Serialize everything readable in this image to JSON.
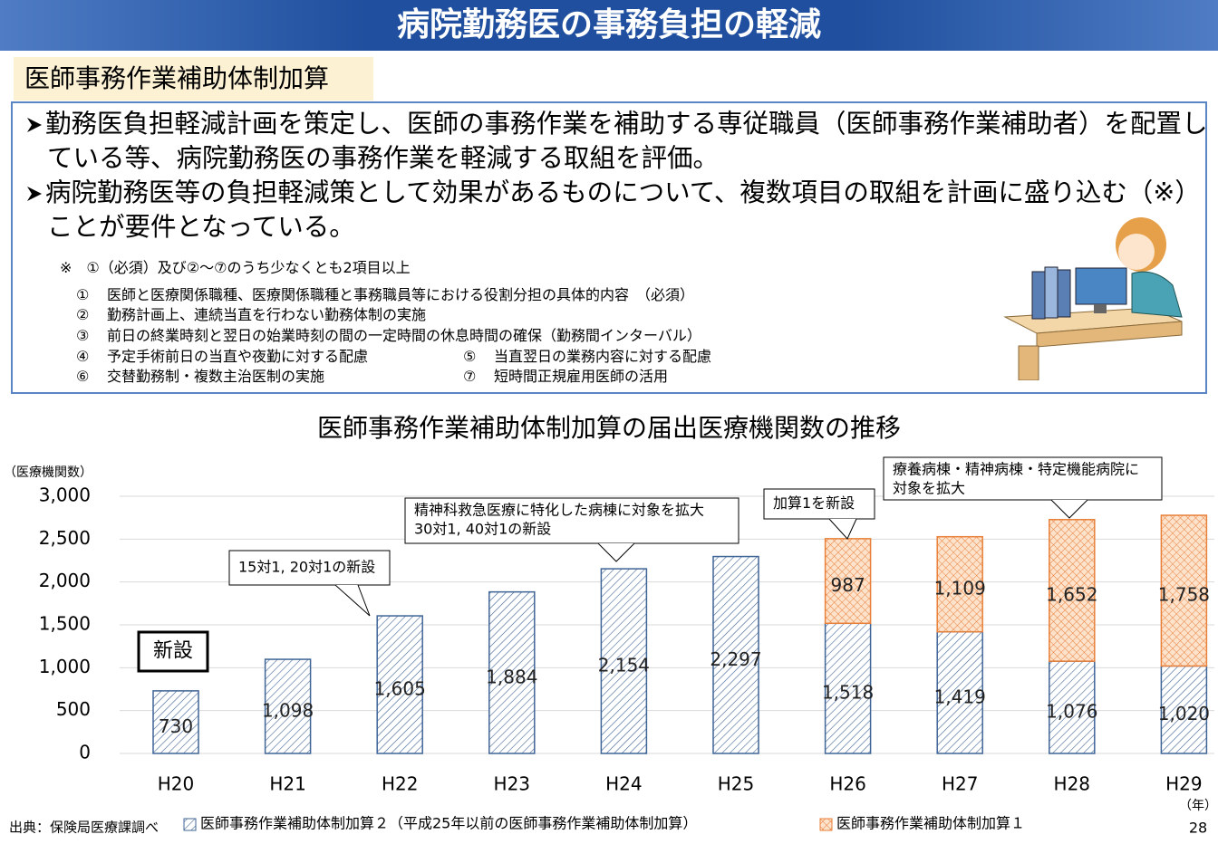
{
  "header": {
    "title": "病院勤務医の事務負担の軽減"
  },
  "section_label": "医師事務作業補助体制加算",
  "bullets": [
    "勤務医負担軽減計画を策定し、医師の事務作業を補助する専従職員（医師事務作業補助者）を配置している等、病院勤務医の事務作業を軽減する取組を評価。",
    "病院勤務医等の負担軽減策として効果があるものについて、複数項目の取組を計画に盛り込む（※）ことが要件となっている。"
  ],
  "note": {
    "heading": "※　①（必須）及び②～⑦のうち少なくとも2項目以上",
    "items": [
      {
        "number": "①",
        "text": "医師と医療関係職種、医療関係職種と事務職員等における役割分担の具体的内容　（必須）"
      },
      {
        "number": "②",
        "text": "勤務計画上、連続当直を行わない勤務体制の実施"
      },
      {
        "number": "③",
        "text": "前日の終業時刻と翌日の始業時刻の間の一定時間の休息時間の確保（勤務間インターバル）"
      },
      {
        "number": "④",
        "text": "予定手術前日の当直や夜勤に対する配慮"
      },
      {
        "number": "⑤",
        "text": "当直翌日の業務内容に対する配慮"
      },
      {
        "number": "⑥",
        "text": "交替勤務制・複数主治医制の実施"
      },
      {
        "number": "⑦",
        "text": "短時間正規雇用医師の活用"
      }
    ]
  },
  "chart_data": {
    "type": "stacked_bar",
    "title": "医師事務作業補助体制加算の届出医療機関数の推移",
    "y_axis_label": "（医療機関数）",
    "x_axis_label": "（年）",
    "categories": [
      "H20",
      "H21",
      "H22",
      "H23",
      "H24",
      "H25",
      "H26",
      "H27",
      "H28",
      "H29"
    ],
    "series": [
      {
        "name": "医師事務作業補助体制加算２（平成25年以前の医師事務作業補助体制加算）",
        "color": "#3f6496",
        "values": [
          730,
          1098,
          1605,
          1884,
          2154,
          2297,
          1518,
          1419,
          1076,
          1020
        ],
        "value_labels": [
          "730",
          "1,098",
          "1,605",
          "1,884",
          "2,154",
          "2,297",
          "1,518",
          "1,419",
          "1,076",
          "1,020"
        ]
      },
      {
        "name": "医師事務作業補助体制加算１",
        "color": "#e8803a",
        "values": [
          null,
          null,
          null,
          null,
          null,
          null,
          987,
          1109,
          1652,
          1758
        ],
        "value_labels": [
          null,
          null,
          null,
          null,
          null,
          null,
          "987",
          "1,109",
          "1,652",
          "1,758"
        ]
      }
    ],
    "ylim": [
      0,
      3000
    ],
    "yticks": [
      0,
      500,
      {
        "value": 1000,
        "label": "1,000"
      },
      {
        "value": 1500,
        "label": "1,500"
      },
      {
        "value": 2000,
        "label": "2,000"
      },
      {
        "value": 2500,
        "label": "2,500"
      },
      {
        "value": 3000,
        "label": "3,000"
      }
    ],
    "grid": true,
    "annotations": [
      [
        "新設"
      ],
      [
        "15対1, 20対1の新設"
      ],
      [
        "精神科救急医療に特化した病棟に対象を拡大",
        "30対1, 40対1の新設"
      ],
      [
        "加算1を新設"
      ],
      [
        "療養病棟・精神病棟・特定機能病院に",
        "対象を拡大"
      ]
    ]
  },
  "footer": {
    "source": "出典：保険局医療課調べ",
    "page_number": "28"
  }
}
